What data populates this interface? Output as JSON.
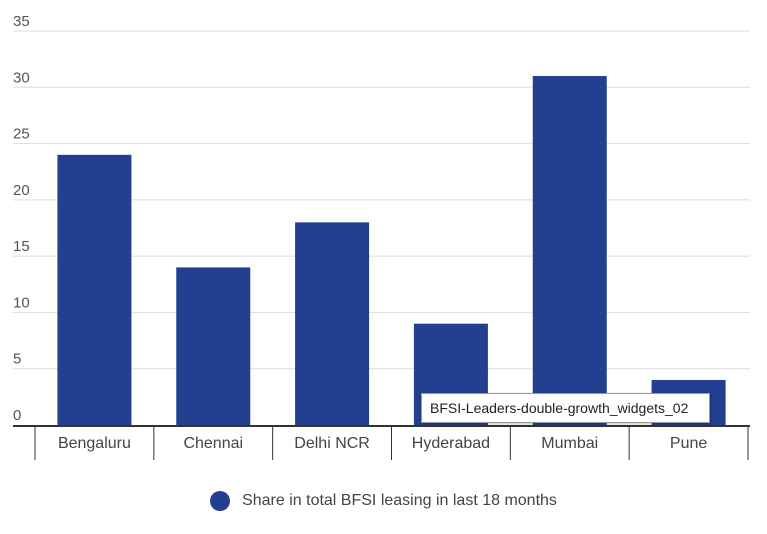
{
  "chart_data": {
    "type": "bar",
    "categories": [
      "Bengaluru",
      "Chennai",
      "Delhi NCR",
      "Hyderabad",
      "Mumbai",
      "Pune"
    ],
    "series": [
      {
        "name": "Share in total BFSI leasing in last 18 months",
        "values": [
          24,
          14,
          18,
          9,
          31,
          4
        ],
        "color": "#233f8f"
      }
    ],
    "yticks": [
      0,
      5,
      10,
      15,
      20,
      25,
      30,
      35
    ],
    "ylim": [
      0,
      35
    ],
    "grid": true,
    "legend_position": "bottom-center"
  },
  "tooltip": {
    "text": "BFSI-Leaders-double-growth_widgets_02"
  },
  "legend": {
    "label": "Share in total BFSI leasing in last 18 months"
  },
  "colors": {
    "bar": "#233f8f",
    "grid": "#dcdcdc",
    "axis": "#333333"
  }
}
